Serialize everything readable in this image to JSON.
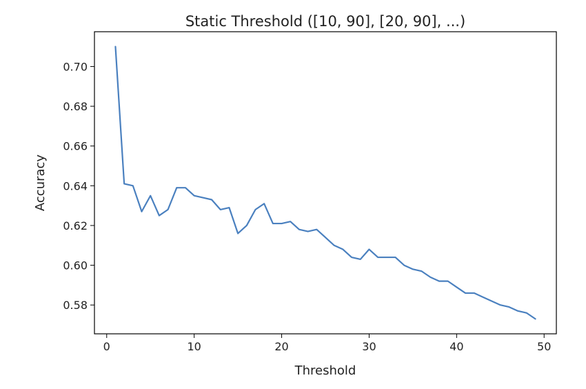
{
  "chart_data": {
    "type": "line",
    "title": "Static Threshold ([10, 90], [20, 90], ...)",
    "xlabel": "Threshold",
    "ylabel": "Accuracy",
    "xlim": [
      -1.4,
      51.4
    ],
    "ylim": [
      0.5655,
      0.7175
    ],
    "xticks": [
      0,
      10,
      20,
      30,
      40,
      50
    ],
    "xtick_labels": [
      "0",
      "10",
      "20",
      "30",
      "40",
      "50"
    ],
    "yticks": [
      0.58,
      0.6,
      0.62,
      0.64,
      0.66,
      0.68,
      0.7
    ],
    "ytick_labels": [
      "0.58",
      "0.60",
      "0.62",
      "0.64",
      "0.66",
      "0.68",
      "0.70"
    ],
    "grid": false,
    "line_color": "#4a80bf",
    "series": [
      {
        "x": [
          1,
          2,
          3,
          4,
          5,
          6,
          7,
          8,
          9,
          10,
          11,
          12,
          13,
          14,
          15,
          16,
          17,
          18,
          19,
          20,
          21,
          22,
          23,
          24,
          25,
          26,
          27,
          28,
          29,
          30,
          31,
          32,
          33,
          34,
          35,
          36,
          37,
          38,
          39,
          40,
          41,
          42,
          43,
          44,
          45,
          46,
          47,
          48,
          49
        ],
        "values": [
          0.71,
          0.641,
          0.64,
          0.627,
          0.635,
          0.625,
          0.628,
          0.639,
          0.639,
          0.635,
          0.634,
          0.633,
          0.628,
          0.629,
          0.616,
          0.62,
          0.628,
          0.631,
          0.621,
          0.621,
          0.622,
          0.618,
          0.617,
          0.618,
          0.614,
          0.61,
          0.608,
          0.604,
          0.603,
          0.608,
          0.604,
          0.604,
          0.604,
          0.6,
          0.598,
          0.597,
          0.594,
          0.592,
          0.592,
          0.589,
          0.586,
          0.586,
          0.584,
          0.582,
          0.58,
          0.579,
          0.577,
          0.576,
          0.573
        ]
      }
    ]
  }
}
